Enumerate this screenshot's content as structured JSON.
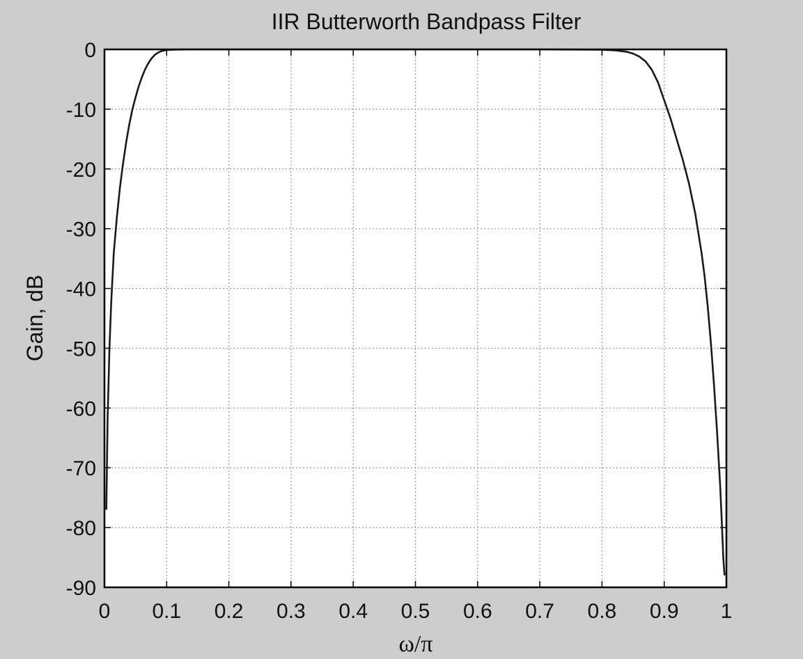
{
  "chart_data": {
    "type": "line",
    "title": "IIR Butterworth Bandpass Filter",
    "xlabel": "ω/π",
    "ylabel": "Gain, dB",
    "xlim": [
      0,
      1
    ],
    "ylim": [
      -90,
      0
    ],
    "grid": true,
    "xticks": [
      0,
      0.1,
      0.2,
      0.3,
      0.4,
      0.5,
      0.6,
      0.7,
      0.8,
      0.9,
      1
    ],
    "xtick_labels": [
      "0",
      "0.1",
      "0.2",
      "0.3",
      "0.4",
      "0.5",
      "0.6",
      "0.7",
      "0.8",
      "0.9",
      "1"
    ],
    "yticks": [
      0,
      -10,
      -20,
      -30,
      -40,
      -50,
      -60,
      -70,
      -80,
      -90
    ],
    "ytick_labels": [
      "0",
      "-10",
      "-20",
      "-30",
      "-40",
      "-50",
      "-60",
      "-70",
      "-80",
      "-90"
    ],
    "series": [
      {
        "color": "#1a1a1a",
        "x": [
          0.003,
          0.005,
          0.008,
          0.011,
          0.015,
          0.02,
          0.025,
          0.03,
          0.035,
          0.04,
          0.045,
          0.05,
          0.055,
          0.06,
          0.065,
          0.07,
          0.075,
          0.08,
          0.085,
          0.09,
          0.095,
          0.1,
          0.11,
          0.12,
          0.13,
          0.15,
          0.2,
          0.3,
          0.4,
          0.5,
          0.6,
          0.7,
          0.8,
          0.82,
          0.84,
          0.85,
          0.86,
          0.87,
          0.88,
          0.89,
          0.9,
          0.91,
          0.92,
          0.93,
          0.94,
          0.95,
          0.96,
          0.965,
          0.97,
          0.975,
          0.98,
          0.985,
          0.99,
          0.993,
          0.995,
          0.997
        ],
        "y": [
          -77,
          -62,
          -50,
          -42,
          -34,
          -28,
          -23,
          -19,
          -15.5,
          -12.5,
          -10,
          -8,
          -6.2,
          -4.7,
          -3.4,
          -2.4,
          -1.6,
          -1,
          -0.6,
          -0.35,
          -0.2,
          -0.1,
          -0.05,
          -0.02,
          -0.01,
          0,
          0,
          0,
          0,
          0,
          0,
          0,
          -0.05,
          -0.15,
          -0.4,
          -0.7,
          -1.2,
          -2,
          -3.4,
          -5.5,
          -8.5,
          -11.5,
          -15,
          -18.5,
          -22.5,
          -27.5,
          -34,
          -38,
          -43,
          -49,
          -56,
          -64,
          -73,
          -80,
          -85,
          -88
        ]
      }
    ]
  }
}
